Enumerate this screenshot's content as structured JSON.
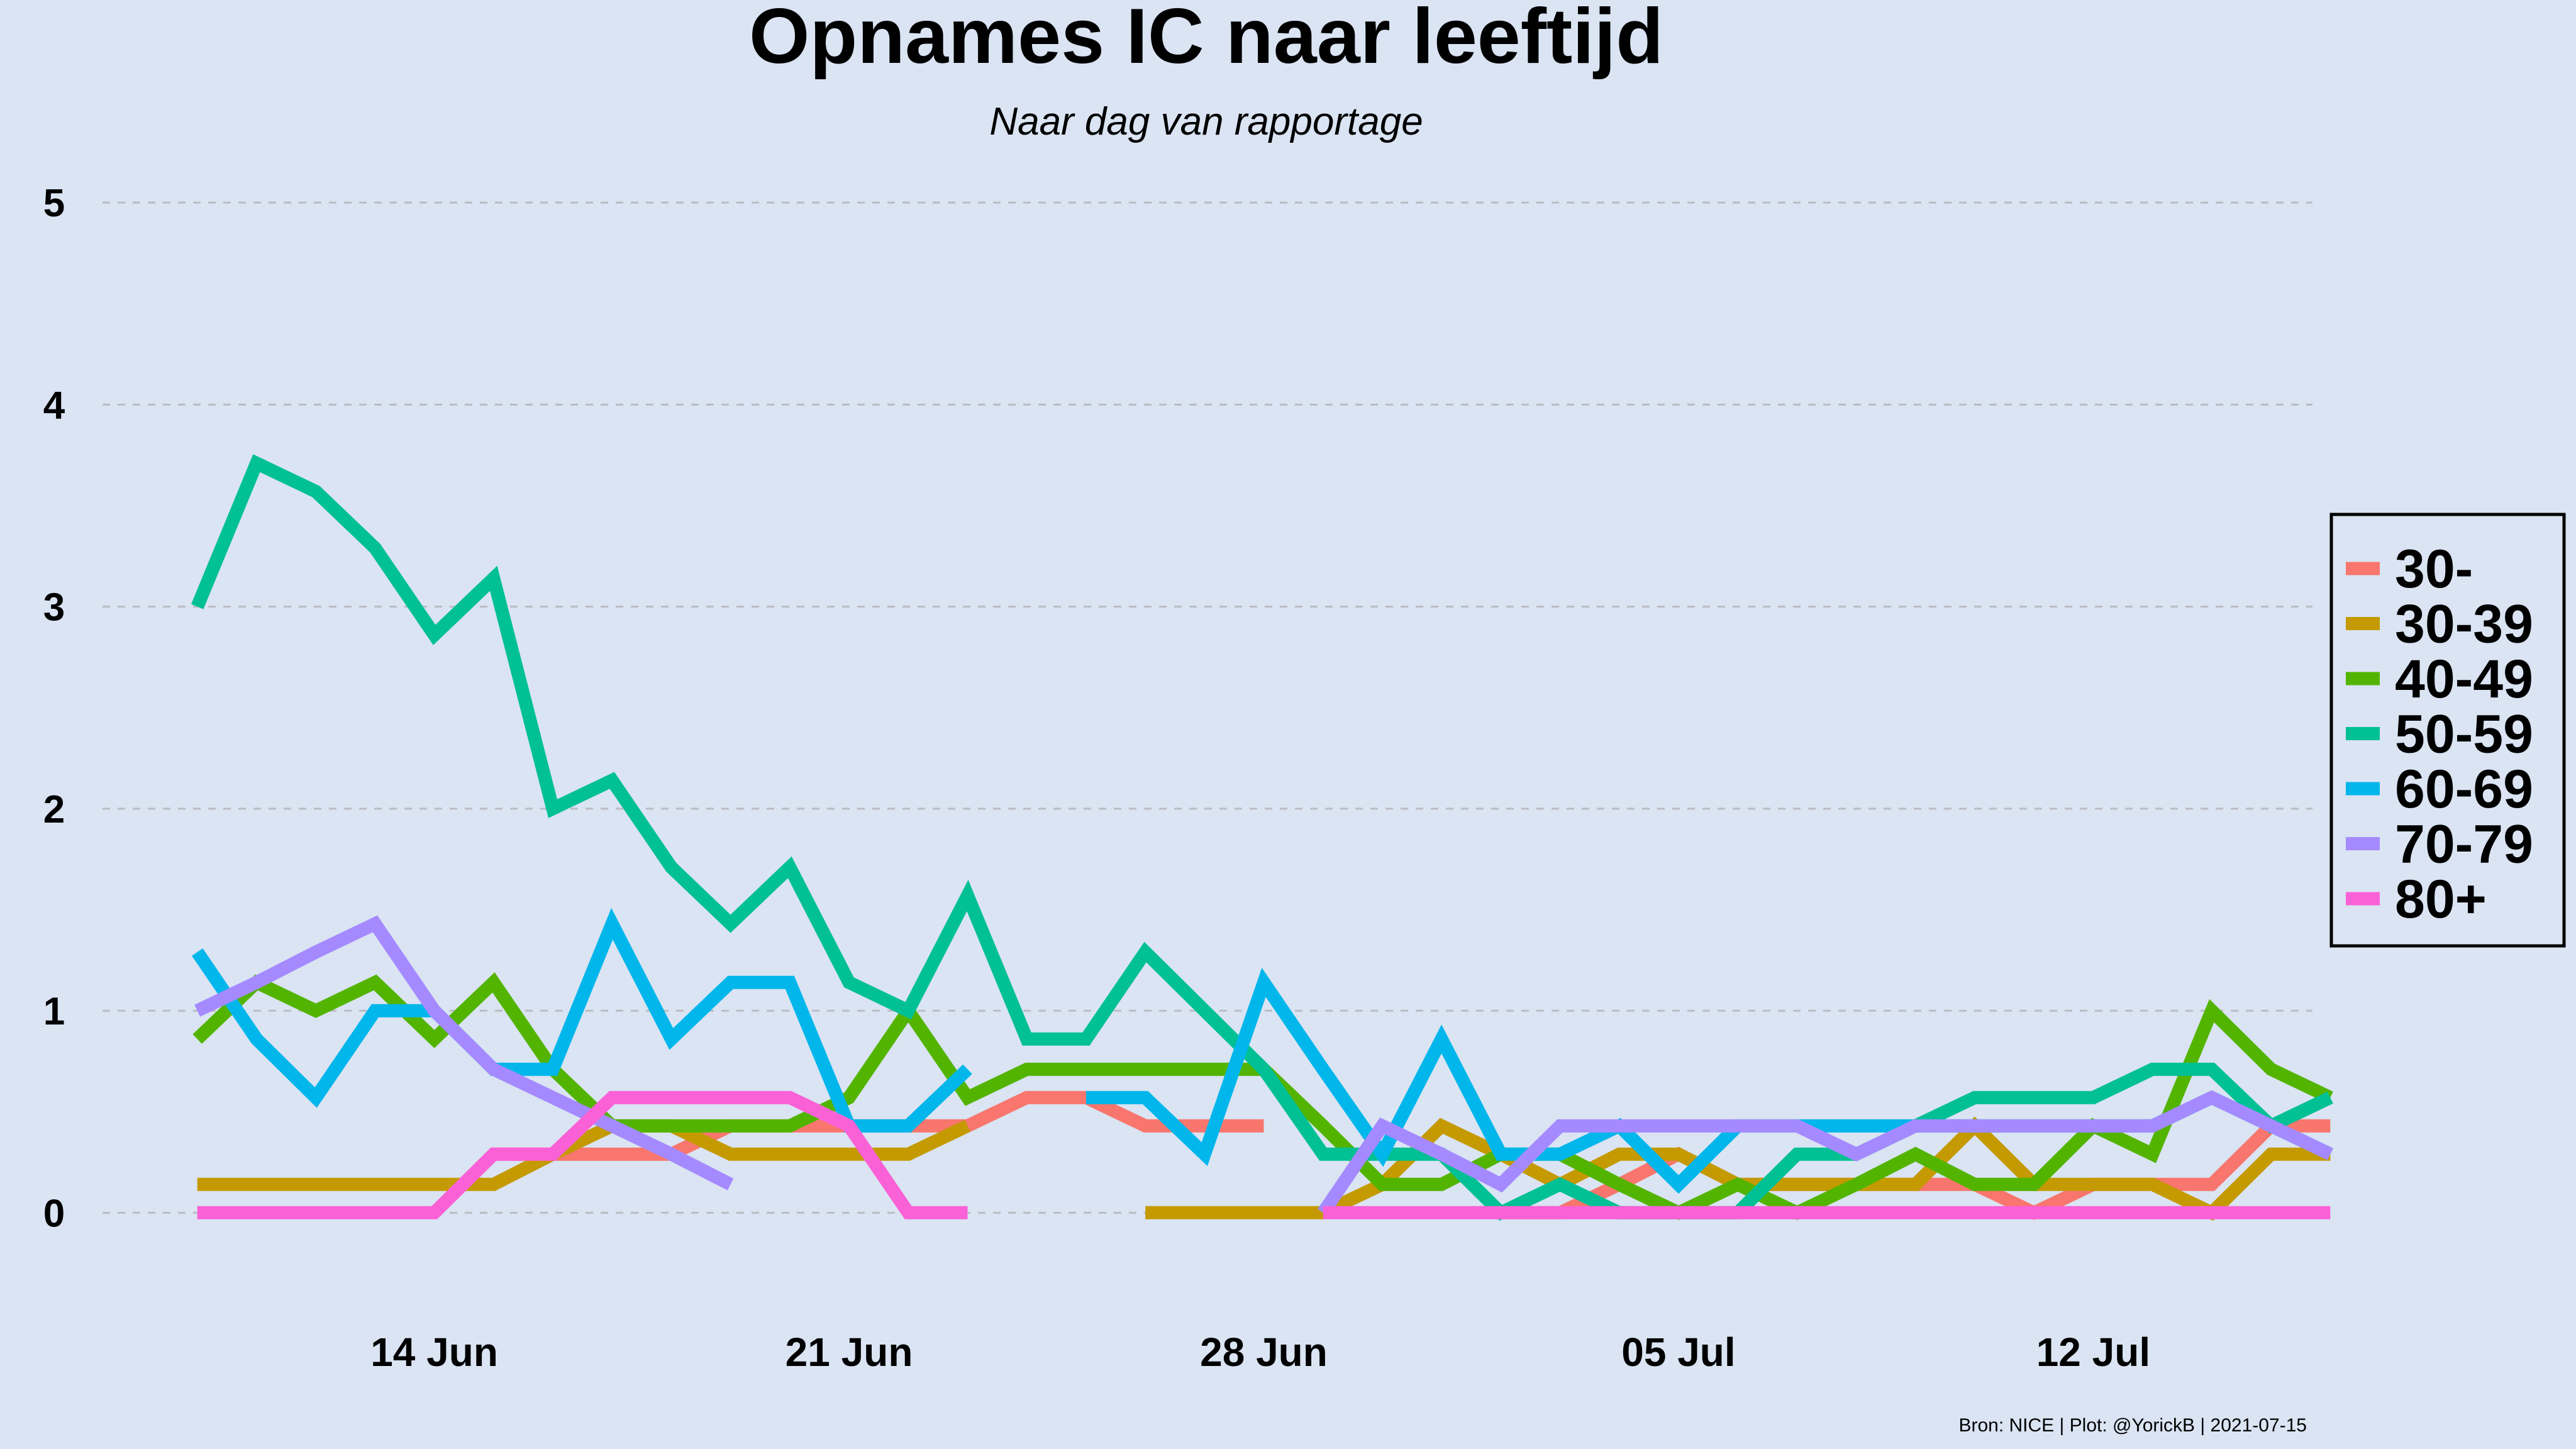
{
  "chart_data": {
    "type": "line",
    "title": "Opnames IC naar leeftijd",
    "subtitle": "Naar dag van rapportage",
    "caption": "Bron: NICE | Plot: @YorickB  |  2021-07-15",
    "xlabel": "",
    "ylabel": "",
    "ylim": [
      -0.55,
      5.1
    ],
    "y_ticks": [
      0,
      1,
      2,
      3,
      4,
      5
    ],
    "x_start": "2021-06-10",
    "x_ticks": [
      {
        "day": 4,
        "label": "14 Jun"
      },
      {
        "day": 11,
        "label": "21 Jun"
      },
      {
        "day": 18,
        "label": "28 Jun"
      },
      {
        "day": 25,
        "label": "05 Jul"
      },
      {
        "day": 32,
        "label": "12 Jul"
      }
    ],
    "x_range": [
      -1.6,
      35.7
    ],
    "grid": "horizontal dashed",
    "legend_position": "right",
    "series": [
      {
        "name": "30-",
        "color": "#f8766d",
        "values": [
          null,
          null,
          null,
          null,
          0.0,
          0.29,
          0.29,
          0.29,
          0.29,
          0.43,
          0.43,
          0.43,
          0.43,
          0.43,
          0.57,
          0.57,
          0.43,
          0.43,
          0.43,
          null,
          null,
          null,
          0.0,
          0.0,
          0.14,
          0.29,
          0.14,
          0.14,
          0.14,
          0.14,
          0.14,
          0.0,
          0.14,
          0.14,
          0.14,
          0.43,
          0.43
        ]
      },
      {
        "name": "30-39",
        "color": "#c49a00",
        "values": [
          0.14,
          0.14,
          0.14,
          0.14,
          0.14,
          0.14,
          0.29,
          0.43,
          0.43,
          0.29,
          0.29,
          0.29,
          0.29,
          0.43,
          null,
          null,
          0.0,
          0.0,
          0.0,
          0.0,
          0.14,
          0.43,
          0.29,
          0.14,
          0.29,
          0.29,
          0.14,
          0.14,
          0.14,
          0.14,
          0.43,
          0.14,
          0.14,
          0.14,
          0.0,
          0.29,
          0.29
        ]
      },
      {
        "name": "40-49",
        "color": "#53b400",
        "values": [
          0.86,
          1.14,
          1.0,
          1.14,
          0.86,
          1.14,
          0.71,
          0.43,
          0.43,
          0.43,
          0.43,
          0.57,
          1.0,
          0.57,
          0.71,
          0.71,
          0.71,
          0.71,
          0.71,
          0.43,
          0.14,
          0.14,
          0.29,
          0.29,
          0.14,
          0.0,
          0.14,
          0.0,
          0.14,
          0.29,
          0.14,
          0.14,
          0.43,
          0.29,
          1.0,
          0.71,
          0.57
        ]
      },
      {
        "name": "50-59",
        "color": "#00c094",
        "values": [
          3.0,
          3.71,
          3.57,
          3.29,
          2.86,
          3.14,
          2.0,
          2.14,
          1.71,
          1.43,
          1.71,
          1.14,
          1.0,
          1.57,
          0.86,
          0.86,
          1.29,
          1.0,
          0.71,
          0.29,
          0.29,
          0.29,
          0.0,
          0.14,
          0.0,
          0.0,
          0.0,
          0.29,
          0.29,
          0.43,
          0.57,
          0.57,
          0.57,
          0.71,
          0.71,
          0.43,
          0.57
        ]
      },
      {
        "name": "60-69",
        "color": "#00b6eb",
        "values": [
          1.29,
          0.86,
          0.57,
          1.0,
          1.0,
          0.71,
          0.71,
          1.43,
          0.86,
          1.14,
          1.14,
          0.43,
          0.43,
          0.71,
          null,
          0.57,
          0.57,
          0.29,
          1.14,
          0.71,
          0.29,
          0.86,
          0.29,
          0.29,
          0.43,
          0.14,
          0.43,
          0.43,
          0.43,
          0.43,
          0.43,
          0.43,
          0.43,
          0.43,
          0.57,
          0.43,
          0.29
        ]
      },
      {
        "name": "70-79",
        "color": "#a58aff",
        "values": [
          1.0,
          1.14,
          1.29,
          1.43,
          1.0,
          0.71,
          0.57,
          0.43,
          0.29,
          0.14,
          null,
          null,
          null,
          null,
          null,
          null,
          null,
          null,
          null,
          0.0,
          0.43,
          0.29,
          0.14,
          0.43,
          0.43,
          0.43,
          0.43,
          0.43,
          0.29,
          0.43,
          0.43,
          0.43,
          0.43,
          0.43,
          0.57,
          0.43,
          0.29
        ]
      },
      {
        "name": "80+",
        "color": "#fb61d7",
        "values": [
          0.0,
          0.0,
          0.0,
          0.0,
          0.0,
          0.29,
          0.29,
          0.57,
          0.57,
          0.57,
          0.57,
          0.43,
          0.0,
          0.0,
          null,
          null,
          null,
          null,
          null,
          0.0,
          0.0,
          0.0,
          0.0,
          0.0,
          0.0,
          0.0,
          0.0,
          0.0,
          0.0,
          0.0,
          0.0,
          0.0,
          0.0,
          0.0,
          0.0,
          0.0,
          0.0
        ]
      }
    ]
  }
}
